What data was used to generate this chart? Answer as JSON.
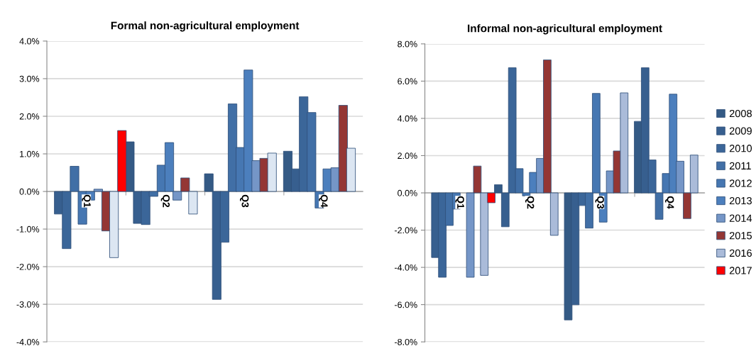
{
  "chart_data": [
    {
      "type": "bar",
      "title": "Formal non-agricultural employment",
      "categories": [
        "Q1",
        "Q2",
        "Q3",
        "Q4"
      ],
      "ylim": [
        -4,
        4
      ],
      "yticks": [
        {
          "value": -4,
          "label": "-4.0%"
        },
        {
          "value": -3,
          "label": "-3.0%"
        },
        {
          "value": -2,
          "label": "-2.0%"
        },
        {
          "value": -1,
          "label": "-1.0%"
        },
        {
          "value": 0,
          "label": "0.0%"
        },
        {
          "value": 1,
          "label": "1.0%"
        },
        {
          "value": 2,
          "label": "2.0%"
        },
        {
          "value": 3,
          "label": "3.0%"
        },
        {
          "value": 4,
          "label": "4.0%"
        }
      ],
      "grid": "y",
      "legend": false,
      "series": [
        {
          "color": "#345a85",
          "values": [
            null,
            1.32,
            0.47,
            1.07
          ]
        },
        {
          "color": "#375f8f",
          "values": [
            -0.6,
            -0.85,
            -2.87,
            0.6
          ]
        },
        {
          "color": "#3b6699",
          "values": [
            -1.52,
            -0.88,
            -1.35,
            2.52
          ]
        },
        {
          "color": "#416fa6",
          "values": [
            0.67,
            -0.13,
            2.33,
            2.1
          ]
        },
        {
          "color": "#4677b2",
          "values": [
            -0.87,
            0.7,
            1.17,
            -0.44
          ]
        },
        {
          "color": "#4c7fbd",
          "values": [
            -0.23,
            1.3,
            3.23,
            0.6
          ]
        },
        {
          "color": "#7596c7",
          "values": [
            0.06,
            -0.23,
            0.82,
            0.63
          ]
        },
        {
          "color": "#943634",
          "values": [
            -1.05,
            0.36,
            0.88,
            2.29
          ]
        },
        {
          "color": "#dce6f2",
          "values": [
            -1.76,
            -0.6,
            1.02,
            1.15
          ]
        },
        {
          "color": "#ff0000",
          "values": [
            1.62,
            null,
            null,
            null
          ]
        }
      ]
    },
    {
      "type": "bar",
      "title": "Informal non-agricultural employment",
      "categories": [
        "Q1",
        "Q2",
        "Q3",
        "Q4"
      ],
      "ylim": [
        -8,
        8
      ],
      "yticks": [
        {
          "value": -8,
          "label": "-8.0%"
        },
        {
          "value": -6,
          "label": "-6.0%"
        },
        {
          "value": -4,
          "label": "-4.0%"
        },
        {
          "value": -2,
          "label": "-2.0%"
        },
        {
          "value": 0,
          "label": "0.0%"
        },
        {
          "value": 2,
          "label": "2.0%"
        },
        {
          "value": 4,
          "label": "4.0%"
        },
        {
          "value": 6,
          "label": "6.0%"
        },
        {
          "value": 8,
          "label": "8.0%"
        }
      ],
      "grid": "y",
      "legend": "right",
      "series": [
        {
          "name": "2008",
          "color": "#345a85",
          "values": [
            null,
            0.44,
            -6.82,
            3.84
          ]
        },
        {
          "name": "2009",
          "color": "#375f8f",
          "values": [
            -3.47,
            -1.82,
            -6.01,
            6.72
          ]
        },
        {
          "name": "2010",
          "color": "#3b6699",
          "values": [
            -4.53,
            6.72,
            -0.68,
            1.77
          ]
        },
        {
          "name": "2011",
          "color": "#416fa6",
          "values": [
            -1.75,
            1.3,
            -1.89,
            -1.42
          ]
        },
        {
          "name": "2012",
          "color": "#4677b2",
          "values": [
            -0.87,
            -0.16,
            5.34,
            1.04
          ]
        },
        {
          "name": "2013",
          "color": "#4c7fbd",
          "values": [
            null,
            1.1,
            -1.57,
            5.3
          ]
        },
        {
          "name": "2014",
          "color": "#7596c7",
          "values": [
            -4.53,
            1.85,
            1.18,
            1.7
          ]
        },
        {
          "name": "2015",
          "color": "#943634",
          "values": [
            1.44,
            7.14,
            2.25,
            -1.38
          ]
        },
        {
          "name": "2016",
          "color": "#aabbd9",
          "values": [
            -4.43,
            -2.28,
            5.37,
            2.03
          ]
        },
        {
          "name": "2017",
          "color": "#ff0000",
          "values": [
            -0.53,
            null,
            null,
            null
          ]
        }
      ]
    }
  ]
}
